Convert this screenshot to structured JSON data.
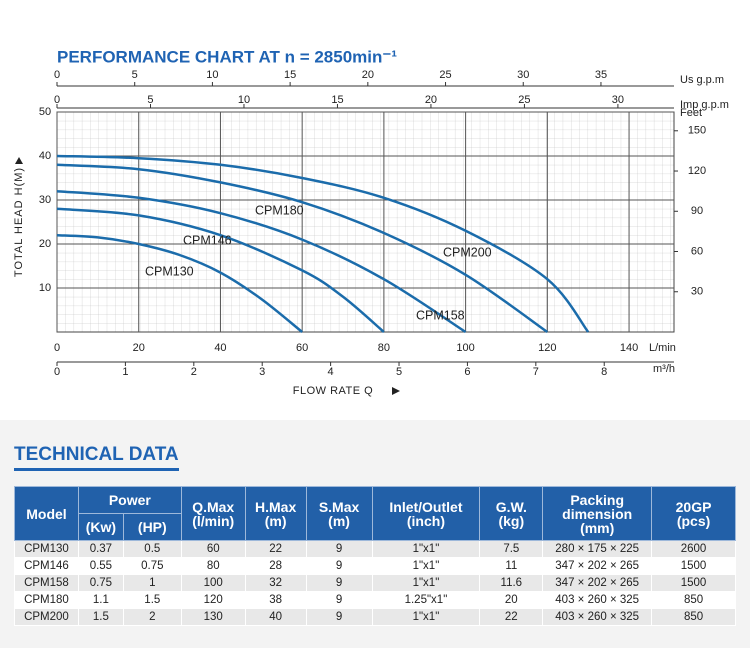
{
  "chart_data": {
    "type": "line",
    "title": "PERFORMANCE CHART AT n = 2850min⁻¹",
    "ylabel": "TOTAL HEAD H(M)",
    "xlabel": "FLOW RATE Q",
    "xunit": "L/min",
    "xlim": [
      0,
      151
    ],
    "xticks": [
      0,
      20,
      40,
      60,
      80,
      100,
      120,
      140
    ],
    "ylim": [
      0,
      50
    ],
    "yticks": [
      10,
      20,
      30,
      40,
      50
    ],
    "grid": true,
    "extra_axes": [
      {
        "position": "top",
        "label": "Us g.p.m",
        "lim": [
          0,
          39.7
        ],
        "ticks": [
          0,
          5,
          10,
          15,
          20,
          25,
          30,
          35
        ]
      },
      {
        "position": "top",
        "label": "Imp g.p.m",
        "lim": [
          0,
          33.0
        ],
        "ticks": [
          0,
          5,
          10,
          15,
          20,
          25,
          30
        ]
      },
      {
        "position": "right",
        "label": "Feet",
        "lim": [
          0,
          164
        ],
        "ticks": [
          30,
          60,
          90,
          120,
          150
        ]
      },
      {
        "position": "bottom",
        "label": "m³/h",
        "lim": [
          0,
          9.02
        ],
        "ticks": [
          0,
          1,
          2,
          3,
          4,
          5,
          6,
          7,
          8
        ]
      }
    ],
    "series": [
      {
        "name": "CPM130",
        "color": "#1b6cab",
        "x": [
          0,
          10,
          20,
          30,
          40,
          50,
          60
        ],
        "values": [
          22,
          21.5,
          20,
          17.5,
          13.5,
          7.5,
          0
        ]
      },
      {
        "name": "CPM146",
        "color": "#1b6cab",
        "x": [
          0,
          20,
          40,
          60,
          70,
          80
        ],
        "values": [
          28,
          26.5,
          22,
          14,
          8,
          0
        ]
      },
      {
        "name": "CPM158",
        "color": "#1b6cab",
        "x": [
          0,
          20,
          40,
          60,
          80,
          100
        ],
        "values": [
          32,
          30.5,
          27,
          21,
          12,
          0
        ]
      },
      {
        "name": "CPM180",
        "color": "#1b6cab",
        "x": [
          0,
          20,
          40,
          60,
          80,
          100,
          120
        ],
        "values": [
          38,
          37,
          34,
          29.5,
          22.5,
          13,
          0
        ]
      },
      {
        "name": "CPM200",
        "color": "#1b6cab",
        "x": [
          0,
          20,
          40,
          60,
          80,
          100,
          120,
          130
        ],
        "values": [
          40,
          39.5,
          38,
          35,
          30.5,
          23,
          12,
          0
        ]
      }
    ]
  },
  "technical_data": {
    "title": "TECHNICAL DATA",
    "header": {
      "model": "Model",
      "power": "Power",
      "kw": "(Kw)",
      "hp": "(HP)",
      "qmax": [
        "Q.Max",
        "(l/min)"
      ],
      "hmax": [
        "H.Max",
        "(m)"
      ],
      "smax": [
        "S.Max",
        "(m)"
      ],
      "inlet": [
        "Inlet/Outlet",
        "(inch)"
      ],
      "gw": [
        "G.W.",
        "(kg)"
      ],
      "packing": [
        "Packing",
        "dimension",
        "(mm)"
      ],
      "gp": [
        "20GP",
        "(pcs)"
      ]
    },
    "rows": [
      [
        "CPM130",
        "0.37",
        "0.5",
        "60",
        "22",
        "9",
        "1\"x1\"",
        "7.5",
        "280 × 175 × 225",
        "2600"
      ],
      [
        "CPM146",
        "0.55",
        "0.75",
        "80",
        "28",
        "9",
        "1\"x1\"",
        "11",
        "347 × 202 × 265",
        "1500"
      ],
      [
        "CPM158",
        "0.75",
        "1",
        "100",
        "32",
        "9",
        "1\"x1\"",
        "11.6",
        "347 × 202 × 265",
        "1500"
      ],
      [
        "CPM180",
        "1.1",
        "1.5",
        "120",
        "38",
        "9",
        "1.25\"x1\"",
        "20",
        "403 × 260 × 325",
        "850"
      ],
      [
        "CPM200",
        "1.5",
        "2",
        "130",
        "40",
        "9",
        "1\"x1\"",
        "22",
        "403 × 260 × 325",
        "850"
      ]
    ]
  }
}
